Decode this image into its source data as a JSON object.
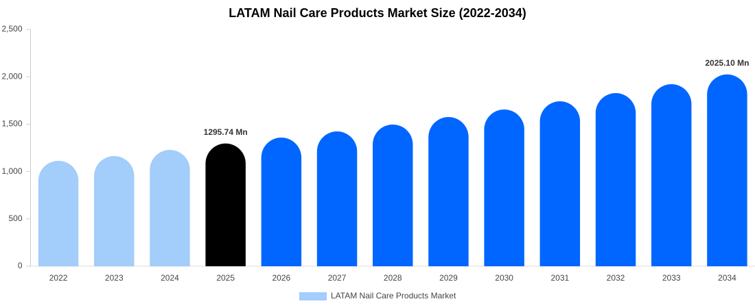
{
  "chart_data": {
    "type": "bar",
    "title": "LATAM Nail Care Products Market Size (2022-2034)",
    "categories": [
      "2022",
      "2023",
      "2024",
      "2025",
      "2026",
      "2027",
      "2028",
      "2029",
      "2030",
      "2031",
      "2032",
      "2033",
      "2034"
    ],
    "series": [
      {
        "name": "LATAM Nail Care Products Market",
        "color": "#a3cdfa",
        "colors": [
          "#a3cdfa",
          "#a3cdfa",
          "#a3cdfa",
          "#000000",
          "#0066ff",
          "#0066ff",
          "#0066ff",
          "#0066ff",
          "#0066ff",
          "#0066ff",
          "#0066ff",
          "#0066ff",
          "#0066ff"
        ],
        "values": [
          1113,
          1163,
          1228,
          1295.74,
          1358,
          1423,
          1496,
          1575,
          1655,
          1741,
          1828,
          1922,
          2025.1
        ],
        "value_labels": [
          null,
          null,
          null,
          "1295.74 Mn",
          null,
          null,
          null,
          null,
          null,
          null,
          null,
          null,
          "2025.10 Mn"
        ]
      }
    ],
    "ylim": [
      0,
      2500
    ],
    "yticks": [
      0,
      500,
      {
        "value": 1000,
        "label": "1,000"
      },
      {
        "value": 1500,
        "label": "1,500"
      },
      {
        "value": 2000,
        "label": "2,000"
      },
      {
        "value": 2500,
        "label": "2,500"
      }
    ],
    "grid": false,
    "legend": "bottom"
  }
}
